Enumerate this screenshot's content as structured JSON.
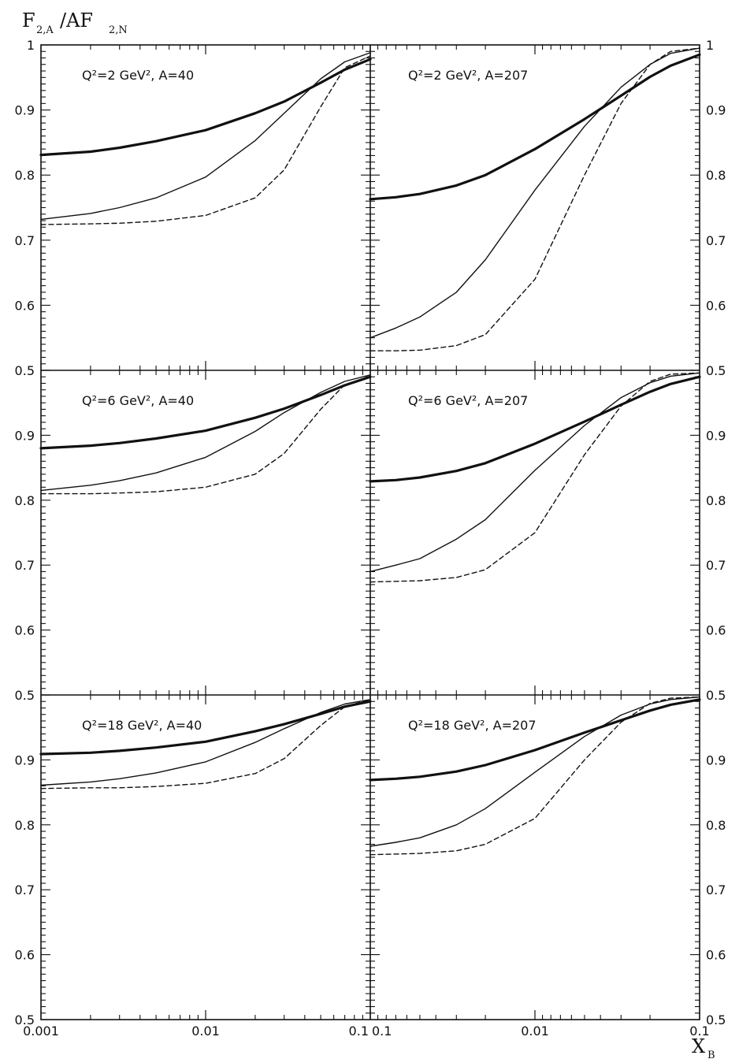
{
  "chart_data": {
    "type": "line",
    "ylabel": {
      "main": "F",
      "sub1": "2,A",
      "mid": "/AF",
      "sub2": "2,N"
    },
    "xlabel": {
      "main": "X",
      "sub": "B"
    },
    "xscale": "log",
    "xlim": [
      0.001,
      0.1
    ],
    "ylim": [
      0.5,
      1.0
    ],
    "left_y_ticks": {
      "top_row": [
        "1",
        "0.9",
        "0.8",
        "0.7",
        "0.6"
      ],
      "other_rows": [
        "0.5",
        "0.9",
        "0.8",
        "0.7",
        "0.6"
      ],
      "bottom": "0.5"
    },
    "right_y_ticks": {
      "top_row": [
        "1",
        "0.9",
        "0.8",
        "0.7",
        "0.6"
      ],
      "other_rows": [
        "0.5",
        "0.9",
        "0.8",
        "0.7",
        "0.6"
      ],
      "bottom": "0.5"
    },
    "x_tick_labels": [
      "0.001",
      "0.01",
      "0.1",
      "0.1",
      "0.01",
      "0.1"
    ],
    "line_styles": [
      "thick-solid",
      "thin-solid",
      "dashed"
    ],
    "panels": [
      {
        "label": "Q²=2 GeV², A=40",
        "row": 0,
        "col": 0,
        "reversed": false,
        "series": [
          {
            "style": "thick-solid",
            "x": [
              0.001,
              0.002,
              0.003,
              0.005,
              0.01,
              0.02,
              0.03,
              0.05,
              0.07,
              0.1
            ],
            "y": [
              0.831,
              0.836,
              0.842,
              0.852,
              0.869,
              0.895,
              0.913,
              0.942,
              0.962,
              0.978
            ]
          },
          {
            "style": "thin-solid",
            "x": [
              0.001,
              0.002,
              0.003,
              0.005,
              0.01,
              0.02,
              0.03,
              0.05,
              0.07,
              0.1
            ],
            "y": [
              0.732,
              0.741,
              0.75,
              0.765,
              0.797,
              0.853,
              0.895,
              0.948,
              0.974,
              0.988
            ]
          },
          {
            "style": "dashed",
            "x": [
              0.001,
              0.002,
              0.003,
              0.005,
              0.01,
              0.02,
              0.03,
              0.05,
              0.07,
              0.1
            ],
            "y": [
              0.724,
              0.725,
              0.726,
              0.729,
              0.738,
              0.765,
              0.808,
              0.905,
              0.965,
              0.983
            ]
          }
        ]
      },
      {
        "label": "Q²=2 GeV², A=207",
        "row": 0,
        "col": 1,
        "reversed": true,
        "series": [
          {
            "style": "thick-solid",
            "x": [
              0.1,
              0.07,
              0.05,
              0.03,
              0.02,
              0.01,
              0.005,
              0.003,
              0.002,
              0.0015,
              0.001
            ],
            "y": [
              0.763,
              0.766,
              0.771,
              0.784,
              0.8,
              0.84,
              0.886,
              0.922,
              0.951,
              0.968,
              0.985
            ]
          },
          {
            "style": "thin-solid",
            "x": [
              0.1,
              0.07,
              0.05,
              0.03,
              0.02,
              0.01,
              0.005,
              0.003,
              0.002,
              0.0015,
              0.001
            ],
            "y": [
              0.55,
              0.565,
              0.582,
              0.62,
              0.67,
              0.777,
              0.875,
              0.935,
              0.97,
              0.987,
              0.995
            ]
          },
          {
            "style": "dashed",
            "x": [
              0.1,
              0.07,
              0.05,
              0.03,
              0.02,
              0.01,
              0.005,
              0.003,
              0.002,
              0.0015,
              0.001
            ],
            "y": [
              0.53,
              0.53,
              0.531,
              0.538,
              0.555,
              0.64,
              0.8,
              0.91,
              0.97,
              0.99,
              0.995
            ]
          }
        ]
      },
      {
        "label": "Q²=6 GeV², A=40",
        "row": 1,
        "col": 0,
        "reversed": false,
        "series": [
          {
            "style": "thick-solid",
            "x": [
              0.001,
              0.002,
              0.003,
              0.005,
              0.01,
              0.02,
              0.03,
              0.05,
              0.07,
              0.1
            ],
            "y": [
              0.88,
              0.884,
              0.888,
              0.895,
              0.907,
              0.927,
              0.941,
              0.962,
              0.977,
              0.99
            ]
          },
          {
            "style": "thin-solid",
            "x": [
              0.001,
              0.002,
              0.003,
              0.005,
              0.01,
              0.02,
              0.03,
              0.05,
              0.07,
              0.1
            ],
            "y": [
              0.815,
              0.823,
              0.83,
              0.842,
              0.866,
              0.906,
              0.935,
              0.966,
              0.983,
              0.993
            ]
          },
          {
            "style": "dashed",
            "x": [
              0.001,
              0.002,
              0.003,
              0.005,
              0.01,
              0.02,
              0.03,
              0.05,
              0.07,
              0.1
            ],
            "y": [
              0.81,
              0.81,
              0.811,
              0.813,
              0.82,
              0.84,
              0.872,
              0.94,
              0.978,
              0.99
            ]
          }
        ]
      },
      {
        "label": "Q²=6 GeV², A=207",
        "row": 1,
        "col": 1,
        "reversed": true,
        "series": [
          {
            "style": "thick-solid",
            "x": [
              0.1,
              0.07,
              0.05,
              0.03,
              0.02,
              0.01,
              0.005,
              0.003,
              0.002,
              0.0015,
              0.001
            ],
            "y": [
              0.829,
              0.831,
              0.835,
              0.845,
              0.857,
              0.887,
              0.921,
              0.947,
              0.967,
              0.979,
              0.99
            ]
          },
          {
            "style": "thin-solid",
            "x": [
              0.1,
              0.07,
              0.05,
              0.03,
              0.02,
              0.01,
              0.005,
              0.003,
              0.002,
              0.0015,
              0.001
            ],
            "y": [
              0.69,
              0.7,
              0.71,
              0.74,
              0.77,
              0.846,
              0.915,
              0.958,
              0.981,
              0.991,
              0.996
            ]
          },
          {
            "style": "dashed",
            "x": [
              0.1,
              0.07,
              0.05,
              0.03,
              0.02,
              0.01,
              0.005,
              0.003,
              0.002,
              0.0015,
              0.001
            ],
            "y": [
              0.674,
              0.675,
              0.676,
              0.681,
              0.693,
              0.75,
              0.87,
              0.945,
              0.983,
              0.994,
              0.996
            ]
          }
        ]
      },
      {
        "label": "Q²=18 GeV², A=40",
        "row": 2,
        "col": 0,
        "reversed": false,
        "series": [
          {
            "style": "thick-solid",
            "x": [
              0.001,
              0.002,
              0.003,
              0.005,
              0.01,
              0.02,
              0.03,
              0.05,
              0.07,
              0.1
            ],
            "y": [
              0.909,
              0.911,
              0.914,
              0.919,
              0.928,
              0.944,
              0.955,
              0.971,
              0.982,
              0.99
            ]
          },
          {
            "style": "thin-solid",
            "x": [
              0.001,
              0.002,
              0.003,
              0.005,
              0.01,
              0.02,
              0.03,
              0.05,
              0.07,
              0.1
            ],
            "y": [
              0.861,
              0.866,
              0.871,
              0.88,
              0.897,
              0.927,
              0.948,
              0.973,
              0.986,
              0.993
            ]
          },
          {
            "style": "dashed",
            "x": [
              0.001,
              0.002,
              0.003,
              0.005,
              0.01,
              0.02,
              0.03,
              0.05,
              0.07,
              0.1
            ],
            "y": [
              0.856,
              0.857,
              0.857,
              0.859,
              0.864,
              0.879,
              0.902,
              0.953,
              0.982,
              0.993
            ]
          }
        ]
      },
      {
        "label": "Q²=18 GeV², A=207",
        "row": 2,
        "col": 1,
        "reversed": true,
        "series": [
          {
            "style": "thick-solid",
            "x": [
              0.1,
              0.07,
              0.05,
              0.03,
              0.02,
              0.01,
              0.005,
              0.003,
              0.002,
              0.0015,
              0.001
            ],
            "y": [
              0.869,
              0.871,
              0.874,
              0.882,
              0.892,
              0.915,
              0.942,
              0.961,
              0.976,
              0.985,
              0.993
            ]
          },
          {
            "style": "thin-solid",
            "x": [
              0.1,
              0.07,
              0.05,
              0.03,
              0.02,
              0.01,
              0.005,
              0.003,
              0.002,
              0.0015,
              0.001
            ],
            "y": [
              0.767,
              0.773,
              0.78,
              0.8,
              0.825,
              0.881,
              0.936,
              0.969,
              0.986,
              0.993,
              0.997
            ]
          },
          {
            "style": "dashed",
            "x": [
              0.1,
              0.07,
              0.05,
              0.03,
              0.02,
              0.01,
              0.005,
              0.003,
              0.002,
              0.0015,
              0.001
            ],
            "y": [
              0.754,
              0.755,
              0.756,
              0.76,
              0.77,
              0.81,
              0.9,
              0.958,
              0.987,
              0.995,
              0.997
            ]
          }
        ]
      }
    ]
  }
}
